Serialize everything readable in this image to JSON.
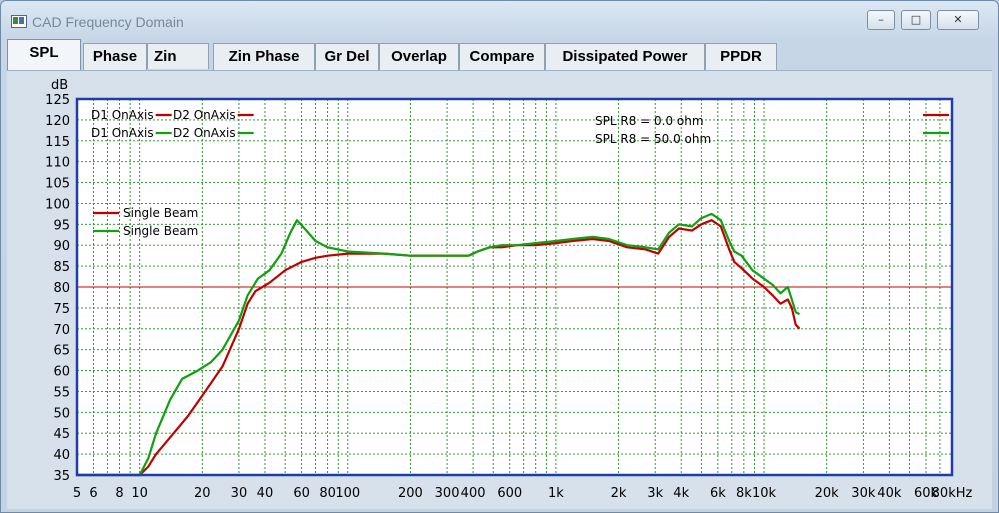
{
  "window": {
    "title": "CAD Frequency Domain",
    "minimize_icon": "minimize-icon",
    "maximize_icon": "maximize-icon",
    "close_icon": "close-icon"
  },
  "tabs": [
    {
      "label": "SPL",
      "active": true
    },
    {
      "label": "Phase",
      "active": false
    },
    {
      "label": "Zin",
      "active": false
    },
    {
      "label": "Zin Phase",
      "active": false
    },
    {
      "label": "Gr Del",
      "active": false
    },
    {
      "label": "Overlap",
      "active": false
    },
    {
      "label": "Compare",
      "active": false
    },
    {
      "label": "Dissipated Power",
      "active": false
    },
    {
      "label": "PPDR",
      "active": false
    }
  ],
  "colors": {
    "series_red": "#c00000",
    "series_green": "#10a010",
    "grid": "#1a8a1a",
    "plot_border": "#1f3ca8",
    "plot_bg": "#ffffff",
    "reference_line": "#d00000"
  },
  "chart_data": {
    "type": "line",
    "xscale": "log",
    "xlim": [
      5,
      80000
    ],
    "ylim": [
      35,
      125
    ],
    "ylabel": "dB",
    "yticks": [
      125,
      120,
      115,
      110,
      105,
      100,
      95,
      90,
      85,
      80,
      75,
      70,
      65,
      60,
      55,
      50,
      45,
      40,
      35
    ],
    "xticks": [
      {
        "v": 5,
        "label": "5"
      },
      {
        "v": 6,
        "label": "6"
      },
      {
        "v": 8,
        "label": "8"
      },
      {
        "v": 10,
        "label": "10"
      },
      {
        "v": 20,
        "label": "20"
      },
      {
        "v": 30,
        "label": "30"
      },
      {
        "v": 40,
        "label": "40"
      },
      {
        "v": 60,
        "label": "60"
      },
      {
        "v": 80,
        "label": "80"
      },
      {
        "v": 100,
        "label": "100"
      },
      {
        "v": 200,
        "label": "200"
      },
      {
        "v": 300,
        "label": "300"
      },
      {
        "v": 400,
        "label": "400"
      },
      {
        "v": 600,
        "label": "600"
      },
      {
        "v": 1000,
        "label": "1k"
      },
      {
        "v": 2000,
        "label": "2k"
      },
      {
        "v": 3000,
        "label": "3k"
      },
      {
        "v": 4000,
        "label": "4k"
      },
      {
        "v": 6000,
        "label": "6k"
      },
      {
        "v": 8000,
        "label": "8k"
      },
      {
        "v": 10000,
        "label": "10k"
      },
      {
        "v": 20000,
        "label": "20k"
      },
      {
        "v": 30000,
        "label": "30k"
      },
      {
        "v": 40000,
        "label": "40k"
      },
      {
        "v": 60000,
        "label": "60k"
      },
      {
        "v": 80000,
        "label": "80kHz"
      }
    ],
    "reference_line_y": 80,
    "legend_left": [
      {
        "text": "D1 OnAxis",
        "color": "#c00000"
      },
      {
        "text": "D2 OnAxis",
        "color": "#c00000"
      },
      {
        "text": "D1 OnAxis",
        "color": "#10a010"
      },
      {
        "text": "D2 OnAxis",
        "color": "#10a010"
      }
    ],
    "legend_beam": [
      {
        "text": "Single Beam",
        "color": "#c00000"
      },
      {
        "text": "Single Beam",
        "color": "#10a010"
      }
    ],
    "annotations": [
      {
        "text": "SPL  R8 = 0.0 ohm",
        "color": "#c00000"
      },
      {
        "text": "SPL  R8 = 50.0 ohm",
        "color": "#10a010"
      }
    ],
    "series": [
      {
        "color": "#c00000",
        "points": [
          [
            5,
            35
          ],
          [
            10,
            35
          ],
          [
            11,
            37
          ],
          [
            12,
            40
          ],
          [
            14,
            44
          ],
          [
            17,
            49
          ],
          [
            20,
            54
          ],
          [
            25,
            61
          ],
          [
            30,
            70
          ],
          [
            33,
            76
          ],
          [
            36,
            79
          ],
          [
            42,
            81
          ],
          [
            50,
            84
          ],
          [
            60,
            86
          ],
          [
            70,
            87
          ],
          [
            80,
            87.5
          ],
          [
            100,
            88
          ],
          [
            150,
            88
          ],
          [
            200,
            87.5
          ],
          [
            300,
            87.5
          ],
          [
            380,
            87.5
          ],
          [
            420,
            88.5
          ],
          [
            480,
            89.5
          ],
          [
            550,
            89.5
          ],
          [
            650,
            90
          ],
          [
            800,
            90
          ],
          [
            1000,
            90.5
          ],
          [
            1200,
            91
          ],
          [
            1500,
            91.5
          ],
          [
            1800,
            91
          ],
          [
            2200,
            89.5
          ],
          [
            2700,
            89
          ],
          [
            3100,
            88
          ],
          [
            3500,
            92
          ],
          [
            3900,
            94
          ],
          [
            4500,
            93.5
          ],
          [
            5000,
            95
          ],
          [
            5600,
            96
          ],
          [
            6200,
            94.5
          ],
          [
            6800,
            89
          ],
          [
            7200,
            86
          ],
          [
            7800,
            84.5
          ],
          [
            8800,
            82
          ],
          [
            10000,
            80
          ],
          [
            11000,
            78
          ],
          [
            12000,
            76
          ],
          [
            13000,
            77
          ],
          [
            13600,
            75
          ],
          [
            14200,
            71
          ],
          [
            14800,
            70
          ]
        ]
      },
      {
        "color": "#10a010",
        "points": [
          [
            5,
            35
          ],
          [
            10,
            35
          ],
          [
            11,
            39
          ],
          [
            12,
            45
          ],
          [
            14,
            53
          ],
          [
            16,
            58
          ],
          [
            19,
            60
          ],
          [
            22,
            62
          ],
          [
            25,
            65
          ],
          [
            30,
            72
          ],
          [
            33,
            78
          ],
          [
            37,
            82
          ],
          [
            42,
            84
          ],
          [
            48,
            88
          ],
          [
            53,
            93
          ],
          [
            57,
            96
          ],
          [
            62,
            94
          ],
          [
            70,
            91
          ],
          [
            80,
            89.5
          ],
          [
            100,
            88.5
          ],
          [
            150,
            88
          ],
          [
            200,
            87.5
          ],
          [
            300,
            87.5
          ],
          [
            380,
            87.5
          ],
          [
            420,
            88.5
          ],
          [
            480,
            89.5
          ],
          [
            550,
            90
          ],
          [
            650,
            90
          ],
          [
            800,
            90.5
          ],
          [
            1000,
            91
          ],
          [
            1200,
            91.5
          ],
          [
            1500,
            92
          ],
          [
            1800,
            91.5
          ],
          [
            2200,
            90
          ],
          [
            2700,
            89.5
          ],
          [
            3100,
            89
          ],
          [
            3500,
            93
          ],
          [
            3900,
            95
          ],
          [
            4500,
            94.5
          ],
          [
            5000,
            96.5
          ],
          [
            5600,
            97.5
          ],
          [
            6200,
            96
          ],
          [
            6800,
            91
          ],
          [
            7200,
            88.5
          ],
          [
            7800,
            87.5
          ],
          [
            8800,
            84
          ],
          [
            10000,
            82
          ],
          [
            11000,
            80.5
          ],
          [
            12000,
            78.5
          ],
          [
            13000,
            80
          ],
          [
            13600,
            77
          ],
          [
            14200,
            74
          ],
          [
            14800,
            73.5
          ]
        ]
      }
    ]
  }
}
